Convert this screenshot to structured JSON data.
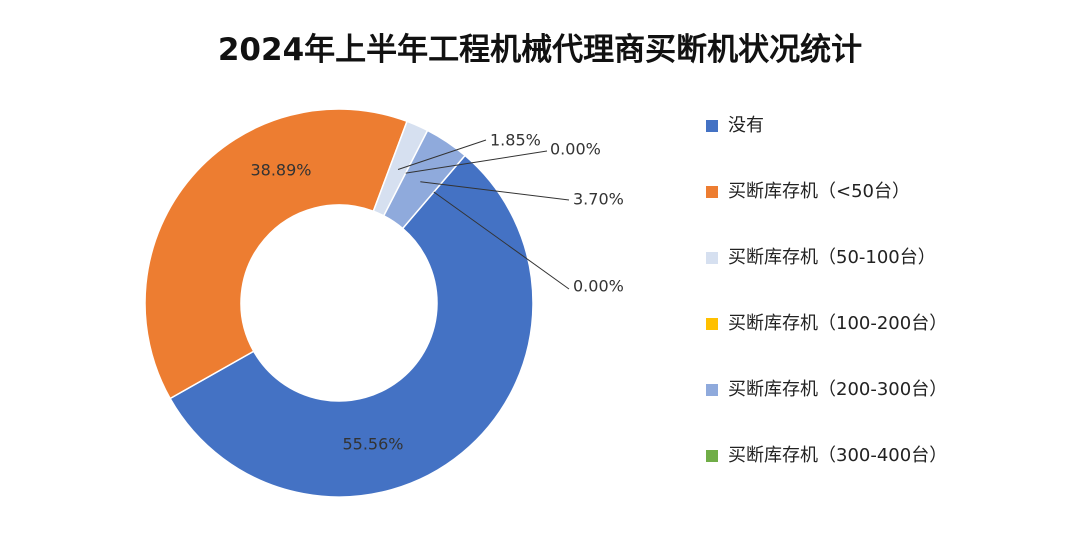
{
  "chart_data": {
    "type": "pie",
    "variant": "donut",
    "title": "2024年上半年工程机械代理商买断机状况统计",
    "categories": [
      "没有",
      "买断库存机（<50台）",
      "买断库存机（50-100台）",
      "买断库存机（100-200台）",
      "买断库存机（200-300台）",
      "买断库存机（300-400台）"
    ],
    "values": [
      55.56,
      38.89,
      1.85,
      0.0,
      3.7,
      0.0
    ],
    "data_labels": [
      "55.56%",
      "38.89%",
      "1.85%",
      "0.00%",
      "3.70%",
      "0.00%"
    ],
    "colors": [
      "#4472C4",
      "#ED7D31",
      "#D6E0F0",
      "#FFC000",
      "#8FAADC",
      "#70AD47"
    ],
    "legend_position": "right"
  }
}
